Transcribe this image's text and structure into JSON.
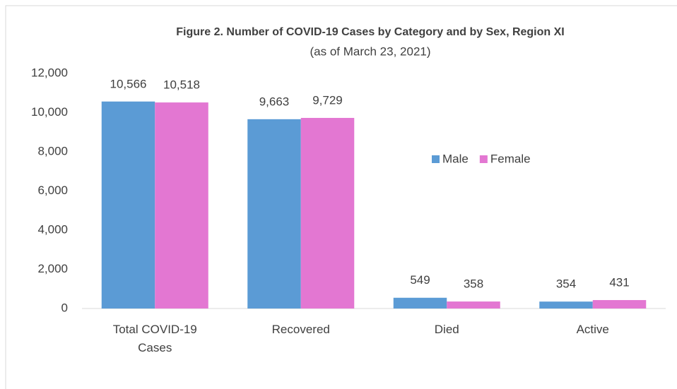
{
  "chart_data": {
    "type": "bar",
    "title": "Figure 2. Number of COVID-19 Cases by Category and by Sex, Region XI",
    "subtitle": "(as of March 23, 2021)",
    "categories": [
      "Total COVID-19 Cases",
      "Recovered",
      "Died",
      "Active"
    ],
    "series": [
      {
        "name": "Male",
        "color": "#5b9bd5",
        "values": [
          10566,
          9663,
          549,
          354
        ],
        "value_labels": [
          "10,566",
          "9,663",
          "549",
          "354"
        ]
      },
      {
        "name": "Female",
        "color": "#e377d2",
        "values": [
          10518,
          9729,
          358,
          431
        ],
        "value_labels": [
          "10,518",
          "9,729",
          "358",
          "431"
        ]
      }
    ],
    "ylim": [
      0,
      12000
    ],
    "yticks": [
      0,
      {
        "value": 2000,
        "label": "2,000"
      },
      {
        "value": 4000,
        "label": "4,000"
      },
      {
        "value": 6000,
        "label": "6,000"
      },
      {
        "value": 8000,
        "label": "8,000"
      },
      {
        "value": 10000,
        "label": "10,000"
      },
      {
        "value": 12000,
        "label": "12,000"
      }
    ],
    "grid": false,
    "legend": "right"
  }
}
